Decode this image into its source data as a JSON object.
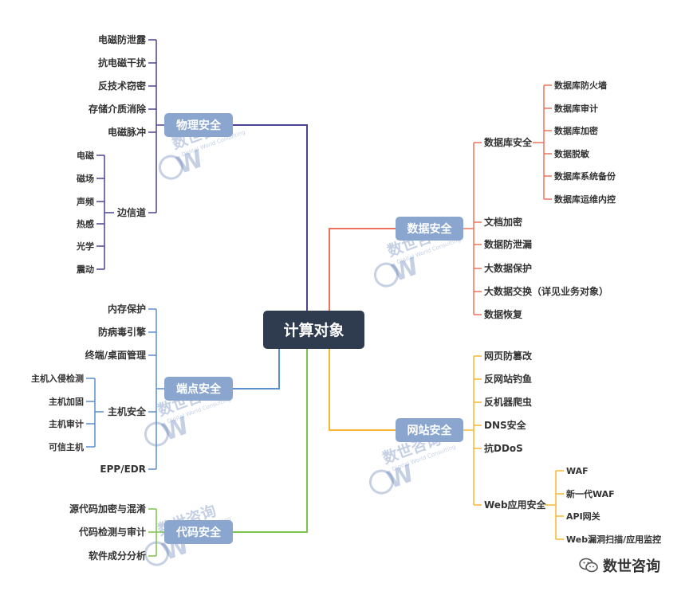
{
  "root": {
    "label": "计算对象"
  },
  "branches": [
    {
      "id": "physical",
      "label": "物理安全",
      "items": [
        "电磁防泄露",
        "抗电磁干扰",
        "反技术窃密",
        "存储介质消除",
        "电磁脉冲",
        "边信道"
      ],
      "sub": {
        "parent": "边信道",
        "items": [
          "电磁",
          "磁场",
          "声频",
          "热感",
          "光学",
          "震动"
        ]
      }
    },
    {
      "id": "endpoint",
      "label": "端点安全",
      "items": [
        "内存保护",
        "防病毒引擎",
        "终端/桌面管理",
        "主机安全",
        "EPP/EDR"
      ],
      "sub": {
        "parent": "主机安全",
        "items": [
          "主机入侵检测",
          "主机加固",
          "主机审计",
          "可信主机"
        ]
      }
    },
    {
      "id": "code",
      "label": "代码安全",
      "items": [
        "源代码加密与混淆",
        "代码检测与审计",
        "软件成分分析"
      ]
    },
    {
      "id": "data",
      "label": "数据安全",
      "items": [
        "数据库安全",
        "文档加密",
        "数据防泄漏",
        "大数据保护",
        "大数据交换（详见业务对象）",
        "数据恢复"
      ],
      "sub": {
        "parent": "数据库安全",
        "items": [
          "数据库防火墙",
          "数据库审计",
          "数据库加密",
          "数据脱敏",
          "数据库系统备份",
          "数据库运维内控"
        ]
      }
    },
    {
      "id": "web",
      "label": "网站安全",
      "items": [
        "网页防篡改",
        "反网站钓鱼",
        "反机器爬虫",
        "DNS安全",
        "抗DDoS",
        "Web应用安全"
      ],
      "sub": {
        "parent": "Web应用安全",
        "items": [
          "WAF",
          "新一代WAF",
          "API网关",
          "Web漏洞扫描/应用监控"
        ]
      }
    }
  ],
  "watermark": {
    "text": "数世咨询",
    "subtext": "Digital World Consulting"
  },
  "brand": {
    "text": "数世咨询"
  },
  "colors": {
    "root": "#2f3b4e",
    "node": "#8aa6cf",
    "physical": "#4a4393",
    "endpoint": "#5b8fcf",
    "code": "#7cc24f",
    "data": "#ee735e",
    "web": "#f5b731"
  }
}
